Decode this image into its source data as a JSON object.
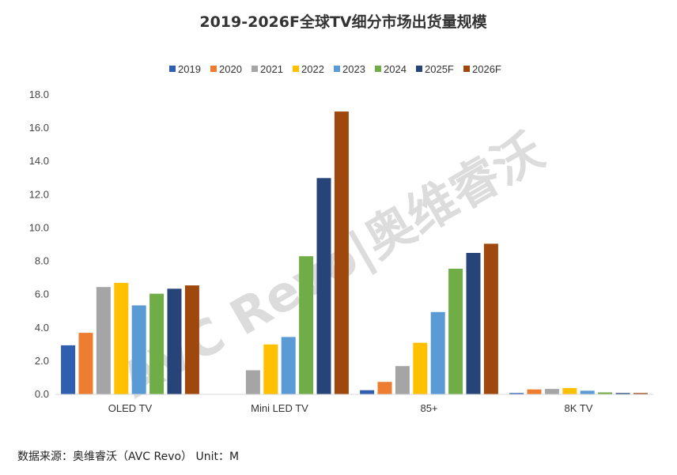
{
  "chart_data": {
    "type": "bar",
    "title": "2019-2026F全球TV细分市场出货量规模",
    "categories": [
      "OLED TV",
      "Mini LED TV",
      "85+",
      "8K TV"
    ],
    "ylim": [
      0,
      18
    ],
    "yticks": [
      "0.0",
      "2.0",
      "4.0",
      "6.0",
      "8.0",
      "10.0",
      "12.0",
      "14.0",
      "16.0",
      "18.0"
    ],
    "grid": false,
    "legend_position": "top",
    "series": [
      {
        "name": "2019",
        "color": "#2f5fae",
        "values": [
          2.95,
          0,
          0.25,
          0.08
        ]
      },
      {
        "name": "2020",
        "color": "#ed7d31",
        "values": [
          3.7,
          0,
          0.75,
          0.3
        ]
      },
      {
        "name": "2021",
        "color": "#a5a5a5",
        "values": [
          6.45,
          1.45,
          1.7,
          0.33
        ]
      },
      {
        "name": "2022",
        "color": "#ffc000",
        "values": [
          6.7,
          3.0,
          3.1,
          0.38
        ]
      },
      {
        "name": "2023",
        "color": "#5b9bd5",
        "values": [
          5.35,
          3.45,
          4.95,
          0.22
        ]
      },
      {
        "name": "2024",
        "color": "#70ad47",
        "values": [
          6.05,
          8.3,
          7.55,
          0.12
        ]
      },
      {
        "name": "2025F",
        "color": "#264478",
        "values": [
          6.35,
          13.0,
          8.5,
          0.08
        ]
      },
      {
        "name": "2026F",
        "color": "#9e480e",
        "values": [
          6.55,
          17.0,
          9.05,
          0.08
        ]
      }
    ]
  },
  "footer": {
    "source": "数据来源：奥维睿沃（AVC Revo） Unit：M"
  },
  "watermark": {
    "text": "AVC Revo|奥维睿沃"
  }
}
